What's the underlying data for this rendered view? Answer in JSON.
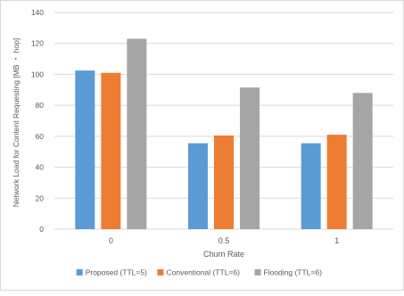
{
  "chart_data": {
    "type": "bar",
    "title": "",
    "xlabel": "Churn Rate",
    "ylabel": "Network Load for Content Requesting [MB ・ hop]",
    "ylim": [
      0,
      140
    ],
    "yticks": [
      0,
      20,
      40,
      60,
      80,
      100,
      120,
      140
    ],
    "categories": [
      "0",
      "0.5",
      "1"
    ],
    "series": [
      {
        "name": "Proposed (TTL=5)",
        "color": "#5b9bd5",
        "values": [
          102.5,
          55.5,
          55.5
        ]
      },
      {
        "name": "Conventional (TTL=6)",
        "color": "#ed7d31",
        "values": [
          101,
          60.5,
          61
        ]
      },
      {
        "name": "Flooding (TTL=6)",
        "color": "#a5a5a5",
        "values": [
          123,
          91.5,
          88
        ]
      }
    ],
    "grid": true,
    "legend_position": "bottom"
  }
}
